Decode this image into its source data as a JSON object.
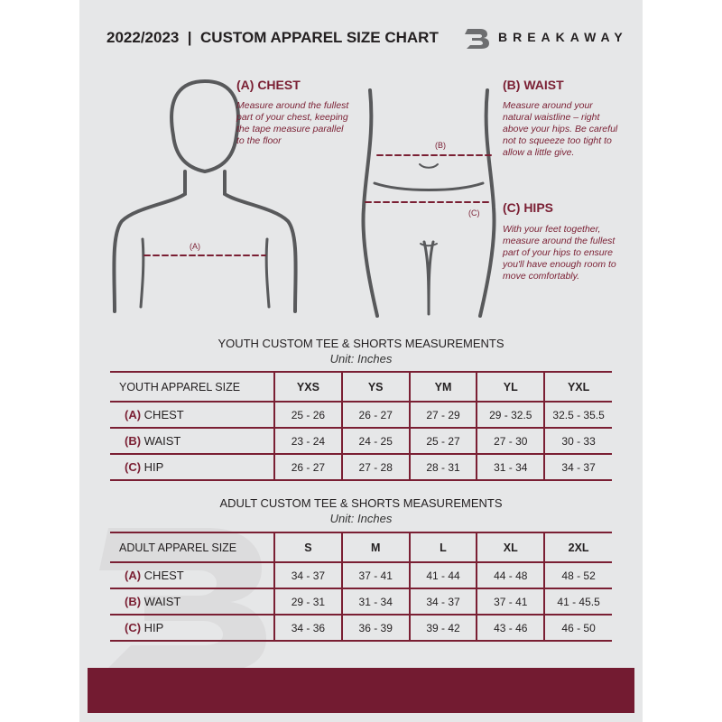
{
  "header": {
    "title": "2022/2023  |  CUSTOM APPAREL SIZE CHART",
    "brand": "BREAKAWAY"
  },
  "measures": {
    "chest": {
      "heading": "(A) CHEST",
      "text": "Measure around the fullest part of your chest, keeping the tape measure parallel to the floor",
      "marker": "(A)"
    },
    "waist": {
      "heading": "(B) WAIST",
      "text": "Measure around your natural waistline – right above your hips. Be careful not to squeeze too tight to allow a little give.",
      "marker": "(B)"
    },
    "hips": {
      "heading": "(C) HIPS",
      "text": "With your feet together, measure around the fullest part of your hips to ensure you'll have enough room to move comfortably.",
      "marker": "(C)"
    }
  },
  "youth": {
    "title": "YOUTH CUSTOM TEE & SHORTS MEASUREMENTS",
    "unit": "Unit: Inches",
    "size_label": "YOUTH APPAREL SIZE",
    "sizes": [
      "YXS",
      "YS",
      "YM",
      "YL",
      "YXL"
    ],
    "rows": [
      {
        "letter": "(A)",
        "name": "CHEST",
        "values": [
          "25 - 26",
          "26 - 27",
          "27 - 29",
          "29 - 32.5",
          "32.5 - 35.5"
        ]
      },
      {
        "letter": "(B)",
        "name": "WAIST",
        "values": [
          "23 - 24",
          "24 - 25",
          "25 - 27",
          "27 - 30",
          "30 - 33"
        ]
      },
      {
        "letter": "(C)",
        "name": "HIP",
        "values": [
          "26 - 27",
          "27 - 28",
          "28 - 31",
          "31 - 34",
          "34 - 37"
        ]
      }
    ]
  },
  "adult": {
    "title": "ADULT CUSTOM TEE & SHORTS MEASUREMENTS",
    "unit": "Unit: Inches",
    "size_label": "ADULT APPAREL SIZE",
    "sizes": [
      "S",
      "M",
      "L",
      "XL",
      "2XL"
    ],
    "rows": [
      {
        "letter": "(A)",
        "name": "CHEST",
        "values": [
          "34 - 37",
          "37 - 41",
          "41 - 44",
          "44 - 48",
          "48 - 52"
        ]
      },
      {
        "letter": "(B)",
        "name": "WAIST",
        "values": [
          "29 - 31",
          "31 - 34",
          "34 - 37",
          "37 - 41",
          "41 - 45.5"
        ]
      },
      {
        "letter": "(C)",
        "name": "HIP",
        "values": [
          "34 - 36",
          "36 - 39",
          "39 - 42",
          "43 - 46",
          "46 - 50"
        ]
      }
    ]
  },
  "colors": {
    "accent": "#7a1f33",
    "panel": "#e6e7e8",
    "footer": "#731b31"
  }
}
